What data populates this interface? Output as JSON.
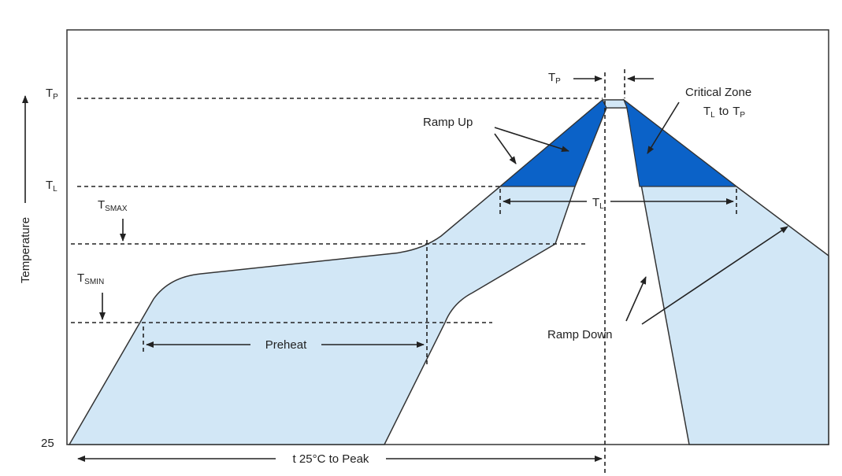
{
  "axis": {
    "y_label": "Temperature"
  },
  "levels": {
    "tp": {
      "main": "T",
      "sub": "P"
    },
    "tl": {
      "main": "T",
      "sub": "L"
    },
    "tsmax": {
      "main": "T",
      "sub": "SMAX"
    },
    "tsmin": {
      "main": "T",
      "sub": "SMIN"
    },
    "start": "25"
  },
  "labels": {
    "ramp_up": "Ramp Up",
    "critical_zone": "Critical Zone",
    "critical_range": {
      "from": {
        "main": "T",
        "sub": "L"
      },
      "to_word": "to",
      "to": {
        "main": "T",
        "sub": "P"
      }
    },
    "preheat": "Preheat",
    "ramp_down": "Ramp Down",
    "t_peak": {
      "main": "T",
      "sub": "P"
    },
    "t_liquidus": {
      "main": "T",
      "sub": "L"
    },
    "t_25_to_peak": "t 25°C to Peak"
  }
}
